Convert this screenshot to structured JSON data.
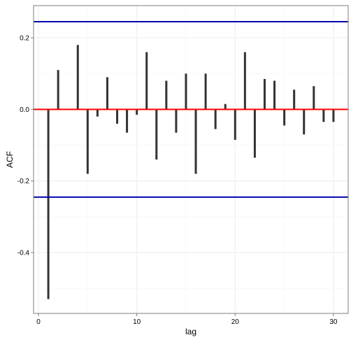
{
  "chart_data": {
    "type": "bar",
    "xlabel": "lag",
    "ylabel": "ACF",
    "xlim": [
      -0.5,
      31.5
    ],
    "ylim": [
      -0.57,
      0.29
    ],
    "x_ticks": [
      0,
      10,
      20,
      30
    ],
    "y_ticks": [
      -0.4,
      -0.2,
      0.0,
      0.2
    ],
    "y_tick_labels": [
      "-0.4",
      "-0.2",
      "0.0",
      "0.2"
    ],
    "x_tick_labels": [
      "0",
      "10",
      "20",
      "30"
    ],
    "grid": true,
    "lags": [
      1,
      2,
      3,
      4,
      5,
      6,
      7,
      8,
      9,
      10,
      11,
      12,
      13,
      14,
      15,
      16,
      17,
      18,
      19,
      20,
      21,
      22,
      23,
      24,
      25,
      26,
      27,
      28,
      29,
      30
    ],
    "acf": [
      -0.53,
      0.11,
      0.0,
      0.18,
      -0.18,
      -0.02,
      0.09,
      -0.04,
      -0.065,
      -0.015,
      0.16,
      -0.14,
      0.08,
      -0.065,
      0.1,
      -0.18,
      0.1,
      -0.055,
      0.015,
      -0.085,
      0.16,
      -0.135,
      0.085,
      0.08,
      -0.045,
      0.055,
      -0.07,
      0.065,
      -0.035,
      -0.035
    ],
    "confidence_bounds": [
      0.245,
      -0.245
    ],
    "colors": {
      "bars": "#333333",
      "zero_line": "#ff0000",
      "confidence_lines": "#0000aa",
      "grid": "#ececec",
      "panel_border": "#7f7f7f"
    }
  }
}
